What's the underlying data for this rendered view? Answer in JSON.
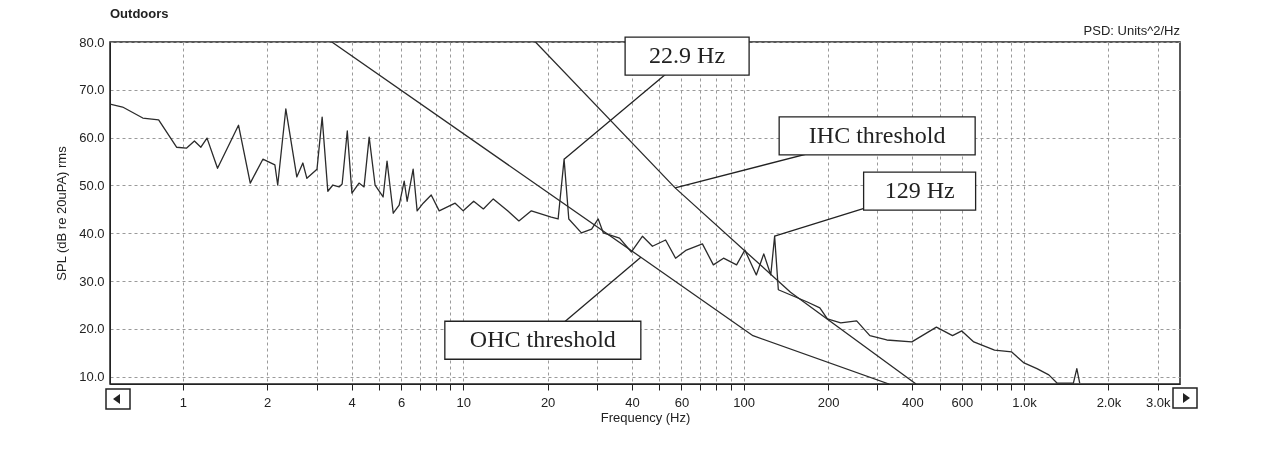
{
  "chart_data": {
    "type": "line",
    "title": "Outdoors",
    "xlabel": "Frequency (Hz)",
    "ylabel": "SPL (dB re 20uPA) rms",
    "log": "x",
    "grid": true,
    "annotations": [
      "PSD: Units^2/Hz",
      {
        "text": "22.9 Hz",
        "x": 22.9,
        "y": 55.5
      },
      {
        "text": "IHC threshold",
        "x": 57,
        "y": 49.5
      },
      {
        "text": "129 Hz",
        "x": 129,
        "y": 39.4
      },
      {
        "text": "OHC threshold",
        "x": 43,
        "y": 35
      }
    ],
    "xlim": [
      0.55,
      3600
    ],
    "xticks": [
      1,
      2,
      {
        "value": 3,
        "label": null
      },
      4,
      {
        "value": 5,
        "label": null
      },
      6,
      {
        "value": 7,
        "label": null
      },
      {
        "value": 8,
        "label": null
      },
      {
        "value": 9,
        "label": null
      },
      10,
      20,
      {
        "value": 30,
        "label": null
      },
      40,
      {
        "value": 50,
        "label": null
      },
      60,
      {
        "value": 70,
        "label": null
      },
      {
        "value": 80,
        "label": null
      },
      {
        "value": 90,
        "label": null
      },
      100,
      200,
      {
        "value": 300,
        "label": null
      },
      400,
      {
        "value": 500,
        "label": null
      },
      600,
      {
        "value": 700,
        "label": null
      },
      {
        "value": 800,
        "label": null
      },
      {
        "value": 900,
        "label": null
      },
      {
        "value": 1000,
        "label": "1.0k"
      },
      {
        "value": 2000,
        "label": "2.0k"
      },
      {
        "value": 3000,
        "label": "3.0k"
      }
    ],
    "ylim": [
      8.5,
      80
    ],
    "yticks": [
      {
        "value": 10,
        "label": "10.0"
      },
      {
        "value": 20,
        "label": "20.0"
      },
      {
        "value": 30,
        "label": "30.0"
      },
      {
        "value": 40,
        "label": "40.0"
      },
      {
        "value": 50,
        "label": "50.0"
      },
      {
        "value": 60,
        "label": "60.0"
      },
      {
        "value": 70,
        "label": "70.0"
      },
      {
        "value": 80,
        "label": "80.0"
      }
    ],
    "series": [
      {
        "color": "#2b2b2b",
        "x": [
          0.55,
          0.61,
          0.72,
          0.82,
          0.95,
          1.03,
          1.1,
          1.16,
          1.22,
          1.33,
          1.58,
          1.74,
          1.93,
          2.13,
          2.18,
          2.33,
          2.55,
          2.68,
          2.77,
          3.01,
          3.14,
          3.29,
          3.43,
          3.61,
          3.7,
          3.86,
          4.01,
          4.25,
          4.43,
          4.62,
          4.85,
          5.18,
          5.35,
          5.63,
          5.91,
          6.16,
          6.31,
          6.63,
          6.85,
          7.2,
          7.69,
          8.21,
          9.36,
          10,
          10.9,
          11.8,
          12.8,
          14.4,
          15.8,
          17.5,
          20.6,
          21.8,
          22.9,
          23.8,
          26.4,
          28.7,
          30.3,
          31.6,
          36.1,
          39.8,
          43.6,
          47.3,
          52.7,
          57.2,
          62.5,
          71.3,
          78,
          84.8,
          94.4,
          101,
          111,
          118,
          125,
          129,
          133,
          168,
          187,
          199,
          222,
          253,
          282,
          324,
          398,
          487,
          556,
          600,
          662,
          785,
          904,
          1000,
          1112,
          1226,
          1311,
          1500,
          1543,
          1580
        ],
        "values": [
          67.0,
          66.4,
          64.1,
          63.7,
          58.0,
          57.8,
          59.3,
          58.0,
          59.9,
          53.6,
          62.6,
          50.5,
          55.5,
          54.3,
          50.1,
          66.0,
          51.8,
          54.7,
          51.5,
          53.4,
          64.3,
          48.8,
          50.1,
          49.7,
          50.3,
          61.4,
          48.4,
          50.5,
          49.7,
          60.1,
          50.1,
          47.6,
          55.1,
          44.2,
          45.9,
          50.9,
          46.7,
          53.4,
          44.7,
          46.3,
          48.0,
          44.7,
          46.3,
          44.7,
          46.7,
          45.1,
          47.2,
          44.7,
          42.6,
          44.7,
          43.4,
          43.0,
          55.5,
          43.0,
          40.1,
          40.9,
          43.0,
          40.1,
          39.0,
          36.1,
          39.4,
          37.3,
          38.6,
          34.8,
          36.5,
          37.8,
          33.4,
          34.8,
          33.4,
          36.5,
          31.3,
          35.7,
          31.3,
          39.4,
          28.2,
          25.7,
          24.4,
          22.1,
          21.3,
          21.7,
          18.6,
          17.7,
          17.3,
          20.4,
          18.6,
          19.6,
          17.3,
          15.6,
          15.2,
          12.9,
          11.7,
          10.4,
          8.7,
          8.7,
          11.7,
          8.7
        ]
      },
      {
        "color": "#2b2b2b",
        "x": [
          18.1,
          57,
          147,
          412
        ],
        "values": [
          80,
          49.5,
          27.7,
          8.5
        ]
      },
      {
        "color": "#2b2b2b",
        "x": [
          3.4,
          43,
          108,
          330
        ],
        "values": [
          80,
          35,
          18.6,
          8.5
        ]
      }
    ]
  }
}
